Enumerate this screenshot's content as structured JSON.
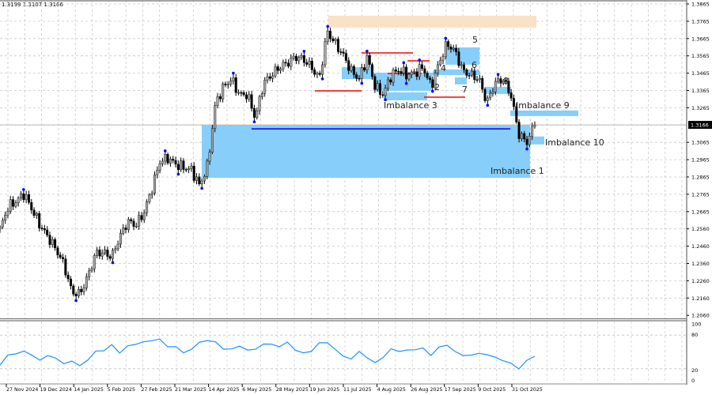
{
  "header": {
    "ohlc_readout": "1.3199 1.3107 1.3166"
  },
  "colors": {
    "bull_candle": "#a6a6a6",
    "bear_candle": "#000000",
    "zone": "#87cefa",
    "supply_zone": "#f9e2c6",
    "level_red": "#ff0000",
    "level_blue": "#0000ff",
    "swing_dot": "#0000ff",
    "oscillator": "#1e90ff",
    "price_tag_bg": "#000000"
  },
  "chart_data": [
    {
      "type": "candlestick",
      "title": "",
      "price_axis_ticks": [
        "1.3865",
        "1.3765",
        "1.3665",
        "1.3565",
        "1.3465",
        "1.3365",
        "1.3265",
        "1.3065",
        "1.2965",
        "1.2865",
        "1.2765",
        "1.2665",
        "1.2560",
        "1.2460",
        "1.2360",
        "1.2260",
        "1.2160",
        "1.2060"
      ],
      "current_price": "1.3166",
      "time_axis_ticks": [
        "27 Nov 2024",
        "19 Dec 2024",
        "14 Jan 2025",
        "5 Feb 2025",
        "27 Feb 2025",
        "21 Mar 2025",
        "14 Apr 2025",
        "6 May 2025",
        "28 May 2025",
        "19 Jun 2025",
        "11 Jul 2025",
        "4 Aug 2025",
        "26 Aug 2025",
        "17 Sep 2025",
        "9 Oct 2025",
        "31 Oct 2025"
      ],
      "ylim": [
        1.206,
        1.3865
      ],
      "grid": true,
      "series": [
        {
          "values": [
            1.2564,
            1.2691,
            1.2723,
            1.2769,
            1.2678,
            1.2586,
            1.2518,
            1.2449,
            1.2358,
            1.2198,
            1.2189,
            1.229,
            1.2427,
            1.2427,
            1.2404,
            1.2518,
            1.2609,
            1.2586,
            1.2655,
            1.2792,
            1.2952,
            1.2975,
            1.2938,
            1.292,
            1.2906,
            1.2815,
            1.2929,
            1.3294,
            1.3386,
            1.3431,
            1.334,
            1.334,
            1.3203,
            1.3408,
            1.3454,
            1.35,
            1.3523,
            1.3559,
            1.3545,
            1.35,
            1.3431,
            1.3705,
            1.3637,
            1.3568,
            1.3477,
            1.3431,
            1.3559,
            1.3386,
            1.334,
            1.3454,
            1.3486,
            1.3454,
            1.3468,
            1.35,
            1.3386,
            1.3523,
            1.3637,
            1.3591,
            1.3477,
            1.3454,
            1.3431,
            1.3294,
            1.3408,
            1.3431,
            1.334,
            1.3112,
            1.3066,
            1.3166
          ]
        }
      ],
      "zones": [
        {
          "label": "",
          "kind": "supply",
          "top": 1.3797,
          "bottom": 1.3728
        },
        {
          "label": "Imbalance 1",
          "kind": "imbalance",
          "top": 1.3166,
          "bottom": 1.286
        },
        {
          "label": "Imbalance 3",
          "kind": "imbalance",
          "top": 1.35,
          "bottom": 1.3431
        },
        {
          "label": "2",
          "kind": "imbalance",
          "top": 1.3468,
          "bottom": 1.3363
        },
        {
          "label": "",
          "kind": "imbalance",
          "top": 1.3354,
          "bottom": 1.3308
        },
        {
          "label": "4",
          "kind": "imbalance",
          "top": 1.3477,
          "bottom": 1.3454
        },
        {
          "label": "5",
          "kind": "imbalance",
          "top": 1.3614,
          "bottom": 1.3514
        },
        {
          "label": "6",
          "kind": "imbalance",
          "top": 1.3486,
          "bottom": 1.3454
        },
        {
          "label": "7",
          "kind": "imbalance",
          "top": 1.344,
          "bottom": 1.34
        },
        {
          "label": "8",
          "kind": "imbalance",
          "top": 1.3386,
          "bottom": 1.3345
        },
        {
          "label": "Imbalance 9",
          "kind": "imbalance",
          "top": 1.3249,
          "bottom": 1.3217
        },
        {
          "label": "Imbalance 10",
          "kind": "imbalance",
          "top": 1.3099,
          "bottom": 1.3053
        }
      ],
      "levels": [
        {
          "color": "red",
          "price": 1.3363
        },
        {
          "color": "red",
          "price": 1.3582
        },
        {
          "color": "red",
          "price": 1.3536
        },
        {
          "color": "red",
          "price": 1.3463
        },
        {
          "color": "red",
          "price": 1.3326
        },
        {
          "color": "blue",
          "price": 1.3143
        }
      ]
    },
    {
      "type": "line",
      "title": "",
      "ylim": [
        0,
        100
      ],
      "y_ticks": [
        "100",
        "80",
        "20",
        "0"
      ],
      "series": [
        {
          "values": [
            26.8,
            43.7,
            47.9,
            50.7,
            43.7,
            36.6,
            42.2,
            39.4,
            29.6,
            32.4,
            26.8,
            35.2,
            50.7,
            53.5,
            62.0,
            47.9,
            62.0,
            62.0,
            69.0,
            70.4,
            71.8,
            60.5,
            59.1,
            47.9,
            56.3,
            66.2,
            70.4,
            69.0,
            53.5,
            56.3,
            60.5,
            52.1,
            56.3,
            63.4,
            63.4,
            60.5,
            66.2,
            53.5,
            49.3,
            49.3,
            67.6,
            66.2,
            53.5,
            43.7,
            36.6,
            50.7,
            40.8,
            29.6,
            40.8,
            56.3,
            49.3,
            54.9,
            53.5,
            56.3,
            45.1,
            57.7,
            62.0,
            52.1,
            42.2,
            45.1,
            47.9,
            43.7,
            42.2,
            33.8,
            29.6,
            21.1,
            33.8,
            42.2
          ]
        }
      ]
    }
  ]
}
